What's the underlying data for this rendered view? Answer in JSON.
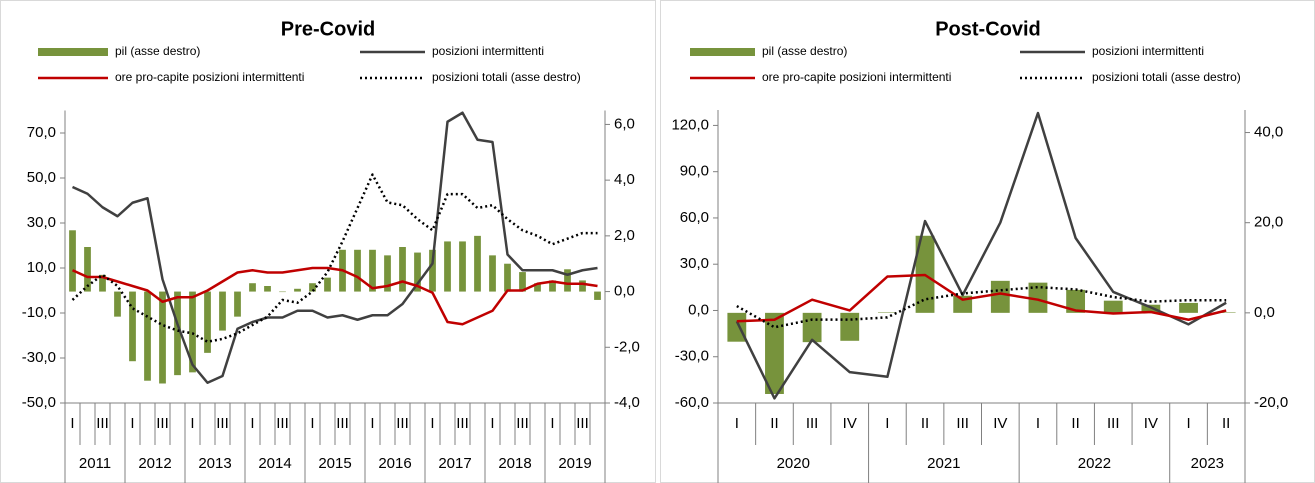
{
  "chart_data": [
    {
      "type": "combo",
      "title": "Pre-Covid",
      "legend": "top",
      "categories": [
        "I",
        null,
        "III",
        null,
        "I",
        null,
        "III",
        null,
        "I",
        null,
        "III",
        null,
        "I",
        null,
        "III",
        null,
        "I",
        null,
        "III",
        null,
        "I",
        null,
        "III",
        null,
        "I",
        null,
        "III",
        null,
        "I",
        null,
        "III",
        null,
        "I",
        null,
        "III",
        null
      ],
      "years": [
        "2011",
        "2012",
        "2013",
        "2014",
        "2015",
        "2016",
        "2017",
        "2018",
        "2019"
      ],
      "ylim": [
        -50,
        80
      ],
      "yticks": [
        {
          "value": -50,
          "label": "-50,0"
        },
        {
          "value": -30,
          "label": "-30,0"
        },
        {
          "value": -10,
          "label": "-10,0"
        },
        {
          "value": 10,
          "label": "10,0"
        },
        {
          "value": 30,
          "label": "30,0"
        },
        {
          "value": 50,
          "label": "50,0"
        },
        {
          "value": 70,
          "label": "70,0"
        }
      ],
      "y2lim": [
        -4,
        6.5
      ],
      "y2ticks": [
        {
          "value": -4,
          "label": "-4,0"
        },
        {
          "value": -2,
          "label": "-2,0"
        },
        {
          "value": 0,
          "label": "0,0"
        },
        {
          "value": 2,
          "label": "2,0"
        },
        {
          "value": 4,
          "label": "4,0"
        },
        {
          "value": 6,
          "label": "6,0"
        }
      ],
      "grid": false,
      "series": [
        {
          "name": "pil (asse destro)",
          "type": "bar",
          "axis": "y2",
          "color": "#77933c",
          "values": [
            2.2,
            1.6,
            0.6,
            -0.9,
            -2.5,
            -3.2,
            -3.3,
            -3.0,
            -2.9,
            -2.2,
            -1.4,
            -0.9,
            0.3,
            0.2,
            0.0,
            0.1,
            0.3,
            0.5,
            1.5,
            1.5,
            1.5,
            1.3,
            1.6,
            1.4,
            1.5,
            1.8,
            1.8,
            2.0,
            1.3,
            1.0,
            0.7,
            0.3,
            0.4,
            0.8,
            0.4,
            -0.3
          ]
        },
        {
          "name": "posizioni intermittenti",
          "type": "line",
          "color": "#404040",
          "dash": "solid",
          "values": [
            46,
            43,
            37,
            33,
            39,
            41,
            5,
            -15,
            -33,
            -41,
            -38,
            -17,
            -14,
            -12,
            -12,
            -9,
            -9,
            -12,
            -11,
            -13,
            -11,
            -11,
            -6,
            3,
            12,
            75,
            79,
            67,
            66,
            16,
            9,
            9,
            9,
            7,
            9,
            10
          ]
        },
        {
          "name": "ore pro-capite posizioni intermittenti",
          "type": "line",
          "color": "#c00000",
          "dash": "solid",
          "values": [
            9,
            6,
            6,
            4,
            2,
            0,
            -5,
            -3,
            -3,
            0,
            4,
            8,
            9,
            8,
            8,
            9,
            10,
            10,
            9,
            6,
            1,
            2,
            4,
            2,
            -1,
            -14,
            -15,
            -12,
            -9,
            0,
            0,
            3,
            4,
            3,
            3,
            2
          ]
        },
        {
          "name": "posizioni totali (asse destro)",
          "type": "line",
          "axis": "y2",
          "color": "#000000",
          "dash": "dotted",
          "values": [
            -0.3,
            0.2,
            0.6,
            0.2,
            -0.6,
            -0.9,
            -1.2,
            -1.4,
            -1.5,
            -1.8,
            -1.7,
            -1.5,
            -1.2,
            -0.9,
            -0.3,
            -0.4,
            0.0,
            0.7,
            1.8,
            3.0,
            4.2,
            3.2,
            3.1,
            2.6,
            2.2,
            3.5,
            3.5,
            3.0,
            3.1,
            2.6,
            2.2,
            2.0,
            1.7,
            1.9,
            2.1,
            2.1
          ]
        }
      ]
    },
    {
      "type": "combo",
      "title": "Post-Covid",
      "legend": "top",
      "categories": [
        "I",
        "II",
        "III",
        "IV",
        "I",
        "II",
        "III",
        "IV",
        "I",
        "II",
        "III",
        "IV",
        "I",
        "II"
      ],
      "years": [
        "2020",
        "2021",
        "2022",
        "2023"
      ],
      "ylim": [
        -60,
        130
      ],
      "yticks": [
        {
          "value": -60,
          "label": "-60,0"
        },
        {
          "value": -30,
          "label": "-30,0"
        },
        {
          "value": 0,
          "label": "0,0"
        },
        {
          "value": 30,
          "label": "30,0"
        },
        {
          "value": 60,
          "label": "60,0"
        },
        {
          "value": 90,
          "label": "90,0"
        },
        {
          "value": 120,
          "label": "120,0"
        }
      ],
      "y2lim": [
        -20,
        45
      ],
      "y2ticks": [
        {
          "value": -20,
          "label": "-20,0"
        },
        {
          "value": 0,
          "label": "0,0"
        },
        {
          "value": 20,
          "label": "20,0"
        },
        {
          "value": 40,
          "label": "40,0"
        }
      ],
      "grid": false,
      "series": [
        {
          "name": "pil (asse destro)",
          "type": "bar",
          "axis": "y2",
          "color": "#77933c",
          "values": [
            -6.4,
            -18,
            -6.5,
            -6.2,
            0.1,
            17.1,
            3.8,
            7.1,
            6.7,
            5.1,
            2.7,
            1.8,
            2.2,
            0.1
          ]
        },
        {
          "name": "posizioni intermittenti",
          "type": "line",
          "color": "#404040",
          "dash": "solid",
          "values": [
            -7,
            -57,
            -19,
            -40,
            -43,
            58,
            10,
            57,
            128,
            47,
            12,
            2,
            -9,
            5
          ]
        },
        {
          "name": "ore pro-capite posizioni intermittenti",
          "type": "line",
          "color": "#c00000",
          "dash": "solid",
          "values": [
            -7,
            -6,
            7,
            0,
            22,
            23,
            7,
            11,
            7,
            0,
            -2,
            -1,
            -6,
            0
          ]
        },
        {
          "name": "posizioni totali (asse destro)",
          "type": "line",
          "axis": "y2",
          "color": "#000000",
          "dash": "dotted",
          "values": [
            1.5,
            -3.2,
            -1.5,
            -1.5,
            -1,
            3,
            4.3,
            5,
            5.7,
            5.2,
            3.5,
            2.5,
            2.8,
            2.8
          ]
        }
      ]
    }
  ]
}
